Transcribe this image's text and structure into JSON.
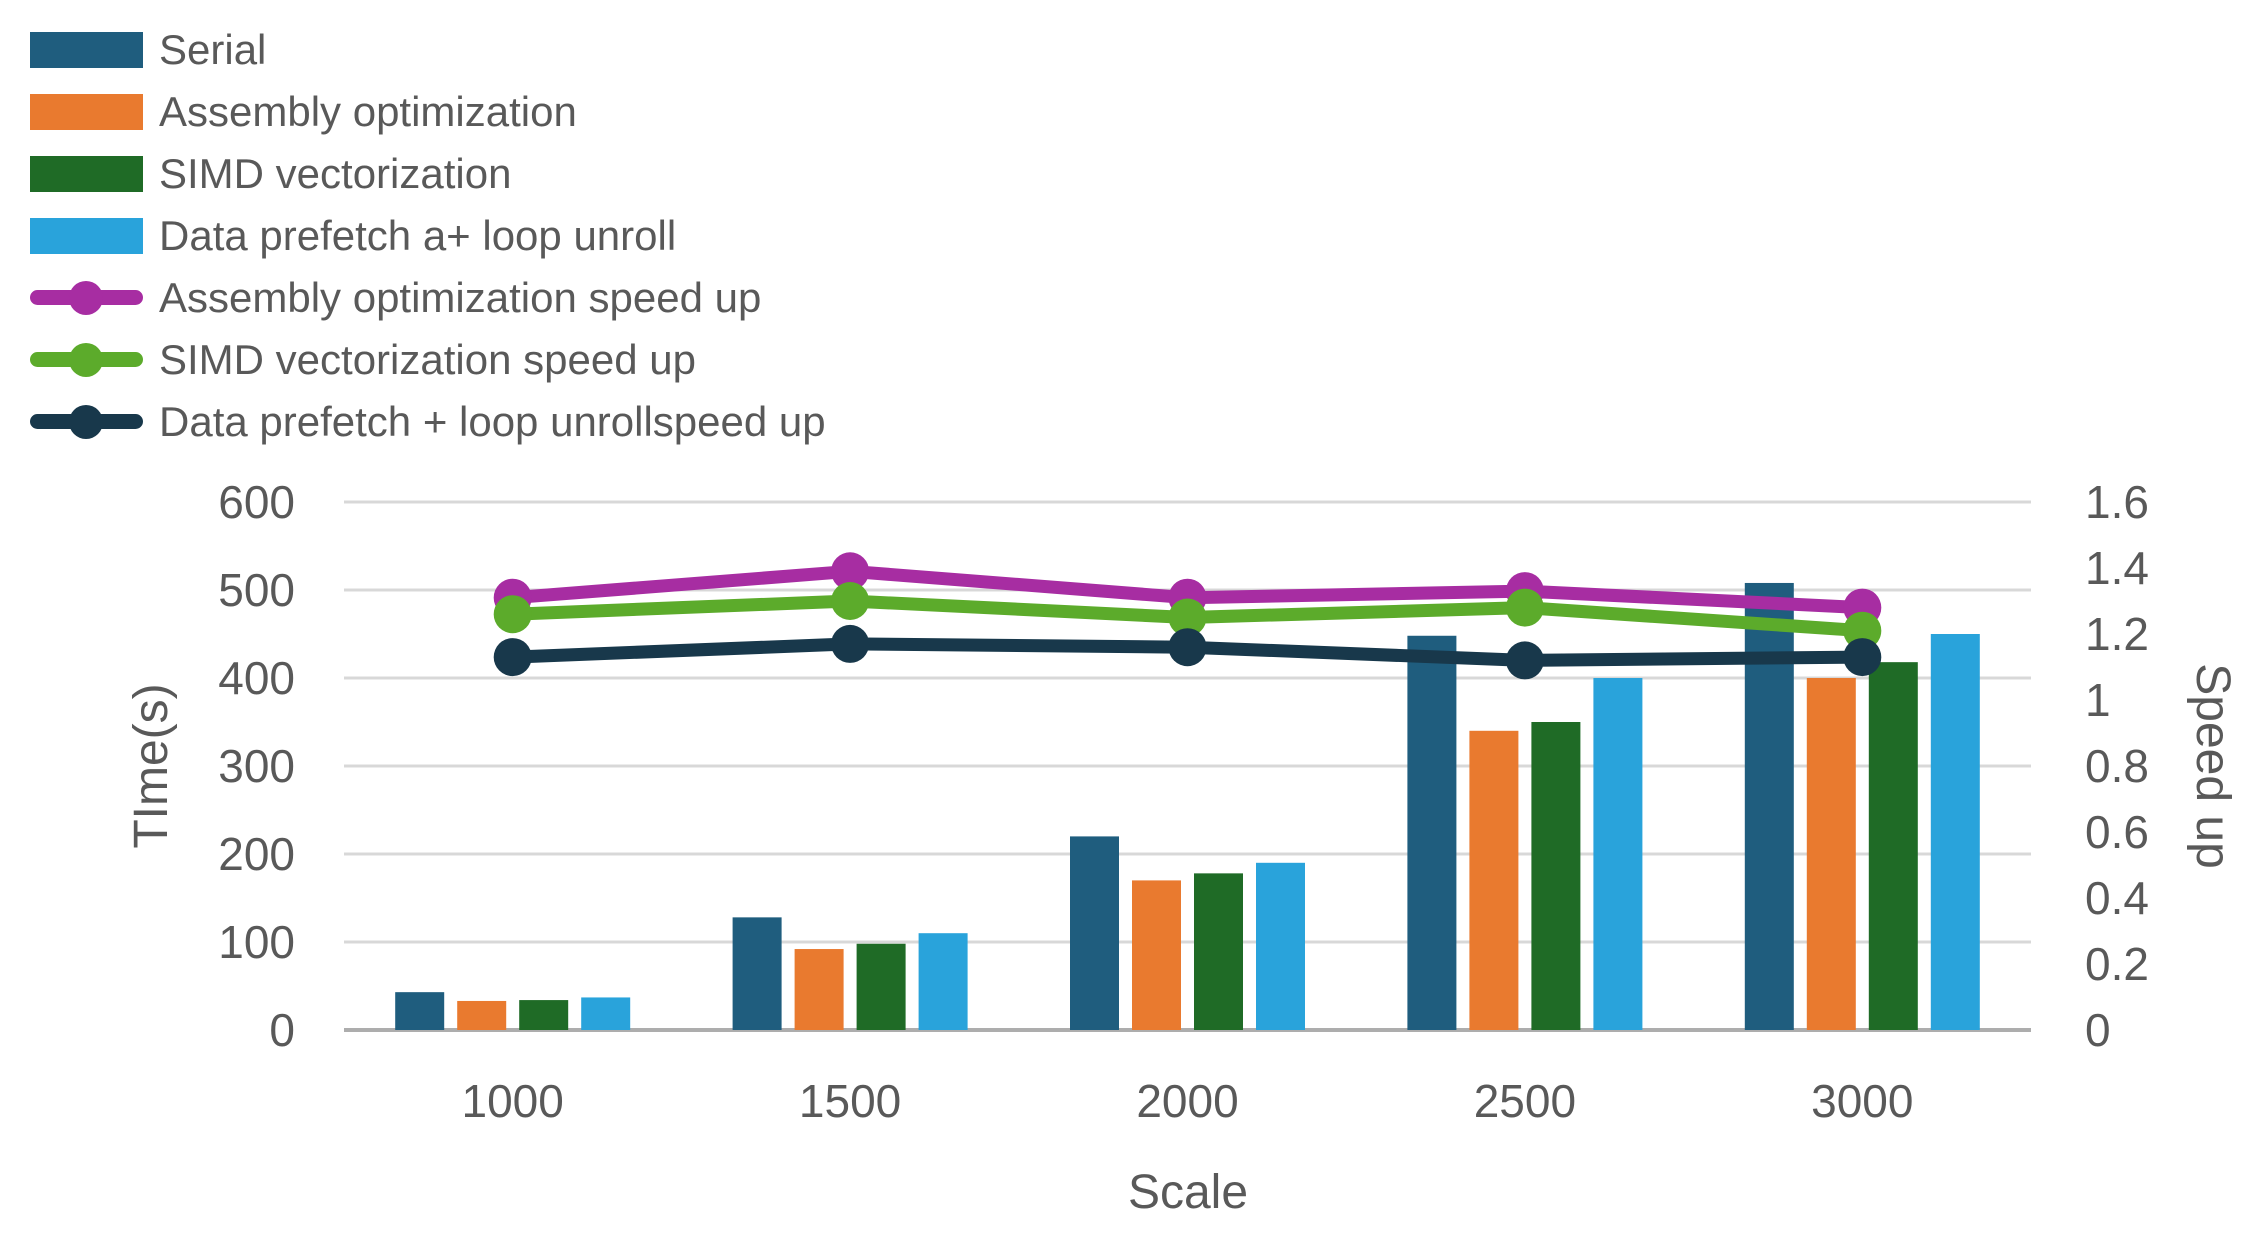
{
  "figure": {
    "background": "#FFFFFF",
    "text_color": "#595959",
    "gridline_color": "#D8D8D8",
    "axis_line_color": "#ADADAD"
  },
  "legend": {
    "position": "top-left",
    "items": [
      {
        "label": "Serial",
        "type": "bar",
        "color": "#1F5D7E"
      },
      {
        "label": "Assembly optimization",
        "type": "bar",
        "color": "#E97A2F"
      },
      {
        "label": "SIMD vectorization",
        "type": "bar",
        "color": "#1F6B26"
      },
      {
        "label": "Data prefetch a+ loop unroll",
        "type": "bar",
        "color": "#29A3DB"
      },
      {
        "label": "Assembly optimization speed up",
        "type": "line",
        "color": "#A72DA2"
      },
      {
        "label": "SIMD vectorization speed up",
        "type": "line",
        "color": "#5CAB2B"
      },
      {
        "label": "Data prefetch + loop unrollspeed up",
        "type": "line",
        "color": "#18384B"
      }
    ]
  },
  "chart_data": {
    "type": "combo-bar-line",
    "categories": [
      "1000",
      "1500",
      "2000",
      "2500",
      "3000"
    ],
    "xlabel": "Scale",
    "grid": true,
    "legend_position": "top-left",
    "left_axis": {
      "label": "TIme(s)",
      "min": 0,
      "max": 600,
      "tick_step": 100,
      "ticks": [
        "0",
        "100",
        "200",
        "300",
        "400",
        "500",
        "600"
      ]
    },
    "right_axis": {
      "label": "Speed up",
      "min": 0,
      "max": 1.6,
      "tick_step": 0.2,
      "ticks": [
        "0",
        "0.2",
        "0.4",
        "0.6",
        "0.8",
        "1",
        "1.2",
        "1.4",
        "1.6"
      ]
    },
    "bar_series": [
      {
        "name": "Serial",
        "axis": "left",
        "color": "#1F5D7E",
        "values": [
          43,
          128,
          220,
          448,
          508
        ]
      },
      {
        "name": "Assembly optimization",
        "axis": "left",
        "color": "#E97A2F",
        "values": [
          33,
          92,
          170,
          340,
          400
        ]
      },
      {
        "name": "SIMD vectorization",
        "axis": "left",
        "color": "#1F6B26",
        "values": [
          34,
          98,
          178,
          350,
          418
        ]
      },
      {
        "name": "Data prefetch a+ loop unroll",
        "axis": "left",
        "color": "#29A3DB",
        "values": [
          37,
          110,
          190,
          400,
          450
        ]
      }
    ],
    "line_series": [
      {
        "name": "Assembly optimization speed up",
        "axis": "right",
        "color": "#A72DA2",
        "values": [
          1.31,
          1.39,
          1.31,
          1.33,
          1.28
        ]
      },
      {
        "name": "SIMD vectorization speed up",
        "axis": "right",
        "color": "#5CAB2B",
        "values": [
          1.26,
          1.3,
          1.25,
          1.28,
          1.21
        ]
      },
      {
        "name": "Data prefetch + loop unrollspeed up",
        "axis": "right",
        "color": "#18384B",
        "values": [
          1.13,
          1.17,
          1.16,
          1.12,
          1.13
        ]
      }
    ]
  }
}
